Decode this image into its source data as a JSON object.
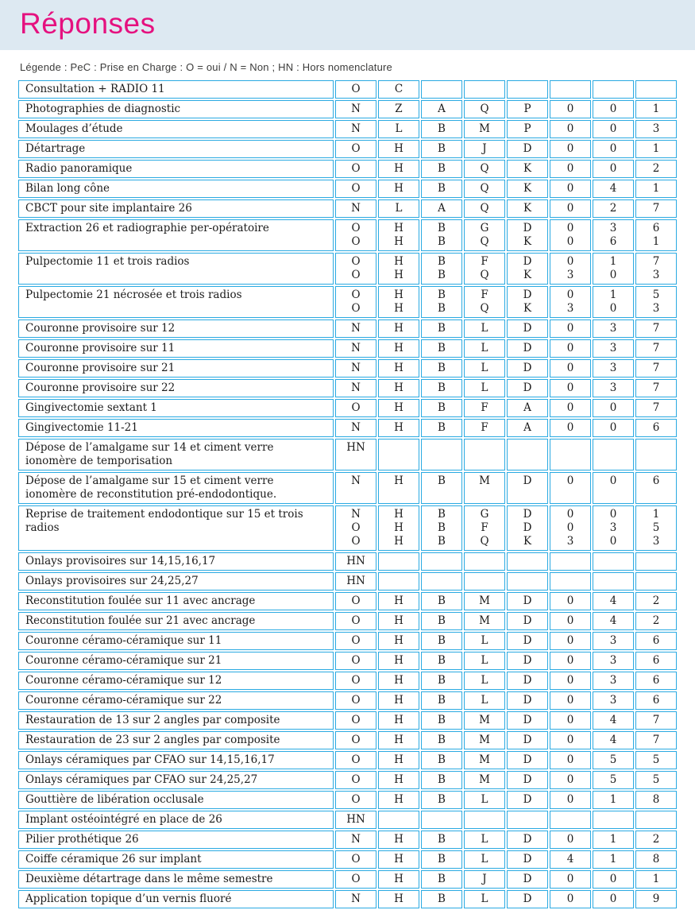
{
  "page": {
    "title": "Réponses",
    "legend": "Légende : PeC : Prise en Charge : O = oui / N = Non ; HN : Hors nomenclature"
  },
  "colors": {
    "title_pink": "#e5117f",
    "table_border_cyan": "#2aaae2",
    "header_band_blue": "#dde9f2",
    "text_ink": "#1c1c1c"
  },
  "table": {
    "value_column_count": 8,
    "rows": [
      {
        "label": "Consultation + RADIO 11",
        "values": [
          [
            "O"
          ],
          [
            "C"
          ],
          [],
          [],
          [],
          [],
          [],
          []
        ]
      },
      {
        "label": "Photographies de diagnostic",
        "values": [
          [
            "N"
          ],
          [
            "Z"
          ],
          [
            "A"
          ],
          [
            "Q"
          ],
          [
            "P"
          ],
          [
            "0"
          ],
          [
            "0"
          ],
          [
            "1"
          ]
        ]
      },
      {
        "label": "Moulages d’étude",
        "values": [
          [
            "N"
          ],
          [
            "L"
          ],
          [
            "B"
          ],
          [
            "M"
          ],
          [
            "P"
          ],
          [
            "0"
          ],
          [
            "0"
          ],
          [
            "3"
          ]
        ]
      },
      {
        "label": "Détartrage",
        "values": [
          [
            "O"
          ],
          [
            "H"
          ],
          [
            "B"
          ],
          [
            "J"
          ],
          [
            "D"
          ],
          [
            "0"
          ],
          [
            "0"
          ],
          [
            "1"
          ]
        ]
      },
      {
        "label": "Radio panoramique",
        "values": [
          [
            "O"
          ],
          [
            "H"
          ],
          [
            "B"
          ],
          [
            "Q"
          ],
          [
            "K"
          ],
          [
            "0"
          ],
          [
            "0"
          ],
          [
            "2"
          ]
        ]
      },
      {
        "label": "Bilan long cône",
        "values": [
          [
            "O"
          ],
          [
            "H"
          ],
          [
            "B"
          ],
          [
            "Q"
          ],
          [
            "K"
          ],
          [
            "0"
          ],
          [
            "4"
          ],
          [
            "1"
          ]
        ]
      },
      {
        "label": "CBCT pour site implantaire 26",
        "values": [
          [
            "N"
          ],
          [
            "L"
          ],
          [
            "A"
          ],
          [
            "Q"
          ],
          [
            "K"
          ],
          [
            "0"
          ],
          [
            "2"
          ],
          [
            "7"
          ]
        ]
      },
      {
        "label": "Extraction 26 et radiographie per-opératoire",
        "values": [
          [
            "O",
            "O"
          ],
          [
            "H",
            "H"
          ],
          [
            "B",
            "B"
          ],
          [
            "G",
            "Q"
          ],
          [
            "D",
            "K"
          ],
          [
            "0",
            "0"
          ],
          [
            "3",
            "6"
          ],
          [
            "6",
            "1"
          ]
        ]
      },
      {
        "label": "Pulpectomie 11 et trois radios",
        "values": [
          [
            "O",
            "O"
          ],
          [
            "H",
            "H"
          ],
          [
            "B",
            "B"
          ],
          [
            "F",
            "Q"
          ],
          [
            "D",
            "K"
          ],
          [
            "0",
            "3"
          ],
          [
            "1",
            "0"
          ],
          [
            "7",
            "3"
          ]
        ]
      },
      {
        "label": "Pulpectomie 21 nécrosée et trois radios",
        "values": [
          [
            "O",
            "O"
          ],
          [
            "H",
            "H"
          ],
          [
            "B",
            "B"
          ],
          [
            "F",
            "Q"
          ],
          [
            "D",
            "K"
          ],
          [
            "0",
            "3"
          ],
          [
            "1",
            "0"
          ],
          [
            "5",
            "3"
          ]
        ]
      },
      {
        "label": "Couronne provisoire sur 12",
        "values": [
          [
            "N"
          ],
          [
            "H"
          ],
          [
            "B"
          ],
          [
            "L"
          ],
          [
            "D"
          ],
          [
            "0"
          ],
          [
            "3"
          ],
          [
            "7"
          ]
        ]
      },
      {
        "label": "Couronne provisoire sur 11",
        "values": [
          [
            "N"
          ],
          [
            "H"
          ],
          [
            "B"
          ],
          [
            "L"
          ],
          [
            "D"
          ],
          [
            "0"
          ],
          [
            "3"
          ],
          [
            "7"
          ]
        ]
      },
      {
        "label": "Couronne provisoire sur 21",
        "values": [
          [
            "N"
          ],
          [
            "H"
          ],
          [
            "B"
          ],
          [
            "L"
          ],
          [
            "D"
          ],
          [
            "0"
          ],
          [
            "3"
          ],
          [
            "7"
          ]
        ]
      },
      {
        "label": "Couronne provisoire sur 22",
        "values": [
          [
            "N"
          ],
          [
            "H"
          ],
          [
            "B"
          ],
          [
            "L"
          ],
          [
            "D"
          ],
          [
            "0"
          ],
          [
            "3"
          ],
          [
            "7"
          ]
        ]
      },
      {
        "label": "Gingivectomie sextant 1",
        "values": [
          [
            "O"
          ],
          [
            "H"
          ],
          [
            "B"
          ],
          [
            "F"
          ],
          [
            "A"
          ],
          [
            "0"
          ],
          [
            "0"
          ],
          [
            "7"
          ]
        ]
      },
      {
        "label": "Gingivectomie 11-21",
        "values": [
          [
            "N"
          ],
          [
            "H"
          ],
          [
            "B"
          ],
          [
            "F"
          ],
          [
            "A"
          ],
          [
            "0"
          ],
          [
            "0"
          ],
          [
            "6"
          ]
        ]
      },
      {
        "label": "Dépose de l’amalgame sur 14 et ciment verre ionomère de temporisation",
        "values": [
          [
            "HN"
          ],
          [],
          [],
          [],
          [],
          [],
          [],
          []
        ]
      },
      {
        "label": "Dépose de l’amalgame sur 15 et ciment verre ionomère de reconstitution pré-endodontique.",
        "values": [
          [
            "N"
          ],
          [
            "H"
          ],
          [
            "B"
          ],
          [
            "M"
          ],
          [
            "D"
          ],
          [
            "0"
          ],
          [
            "0"
          ],
          [
            "6"
          ]
        ]
      },
      {
        "label": "Reprise de traitement endodontique sur 15 et trois radios",
        "values": [
          [
            "N",
            "O",
            "O"
          ],
          [
            "H",
            "H",
            "H"
          ],
          [
            "B",
            "B",
            "B"
          ],
          [
            "G",
            "F",
            "Q"
          ],
          [
            "D",
            "D",
            "K"
          ],
          [
            "0",
            "0",
            "3"
          ],
          [
            "0",
            "3",
            "0"
          ],
          [
            "1",
            "5",
            "3"
          ]
        ]
      },
      {
        "label": "Onlays provisoires sur 14,15,16,17",
        "values": [
          [
            "HN"
          ],
          [],
          [],
          [],
          [],
          [],
          [],
          []
        ]
      },
      {
        "label": "Onlays provisoires sur 24,25,27",
        "values": [
          [
            "HN"
          ],
          [],
          [],
          [],
          [],
          [],
          [],
          []
        ]
      },
      {
        "label": "Reconstitution foulée sur 11 avec ancrage",
        "values": [
          [
            "O"
          ],
          [
            "H"
          ],
          [
            "B"
          ],
          [
            "M"
          ],
          [
            "D"
          ],
          [
            "0"
          ],
          [
            "4"
          ],
          [
            "2"
          ]
        ]
      },
      {
        "label": "Reconstitution foulée sur 21 avec ancrage",
        "values": [
          [
            "O"
          ],
          [
            "H"
          ],
          [
            "B"
          ],
          [
            "M"
          ],
          [
            "D"
          ],
          [
            "0"
          ],
          [
            "4"
          ],
          [
            "2"
          ]
        ]
      },
      {
        "label": "Couronne céramo-céramique sur 11",
        "values": [
          [
            "O"
          ],
          [
            "H"
          ],
          [
            "B"
          ],
          [
            "L"
          ],
          [
            "D"
          ],
          [
            "0"
          ],
          [
            "3"
          ],
          [
            "6"
          ]
        ]
      },
      {
        "label": "Couronne céramo-céramique sur 21",
        "values": [
          [
            "O"
          ],
          [
            "H"
          ],
          [
            "B"
          ],
          [
            "L"
          ],
          [
            "D"
          ],
          [
            "0"
          ],
          [
            "3"
          ],
          [
            "6"
          ]
        ]
      },
      {
        "label": "Couronne céramo-céramique sur 12",
        "values": [
          [
            "O"
          ],
          [
            "H"
          ],
          [
            "B"
          ],
          [
            "L"
          ],
          [
            "D"
          ],
          [
            "0"
          ],
          [
            "3"
          ],
          [
            "6"
          ]
        ]
      },
      {
        "label": "Couronne céramo-céramique sur 22",
        "values": [
          [
            "O"
          ],
          [
            "H"
          ],
          [
            "B"
          ],
          [
            "L"
          ],
          [
            "D"
          ],
          [
            "0"
          ],
          [
            "3"
          ],
          [
            "6"
          ]
        ]
      },
      {
        "label": "Restauration de 13 sur 2 angles par composite",
        "values": [
          [
            "O"
          ],
          [
            "H"
          ],
          [
            "B"
          ],
          [
            "M"
          ],
          [
            "D"
          ],
          [
            "0"
          ],
          [
            "4"
          ],
          [
            "7"
          ]
        ]
      },
      {
        "label": "Restauration de 23 sur 2 angles par composite",
        "values": [
          [
            "O"
          ],
          [
            "H"
          ],
          [
            "B"
          ],
          [
            "M"
          ],
          [
            "D"
          ],
          [
            "0"
          ],
          [
            "4"
          ],
          [
            "7"
          ]
        ]
      },
      {
        "label": "Onlays céramiques par CFAO sur 14,15,16,17",
        "values": [
          [
            "O"
          ],
          [
            "H"
          ],
          [
            "B"
          ],
          [
            "M"
          ],
          [
            "D"
          ],
          [
            "0"
          ],
          [
            "5"
          ],
          [
            "5"
          ]
        ]
      },
      {
        "label": "Onlays céramiques par CFAO sur 24,25,27",
        "values": [
          [
            "O"
          ],
          [
            "H"
          ],
          [
            "B"
          ],
          [
            "M"
          ],
          [
            "D"
          ],
          [
            "0"
          ],
          [
            "5"
          ],
          [
            "5"
          ]
        ]
      },
      {
        "label": "Gouttière de libération occlusale",
        "values": [
          [
            "O"
          ],
          [
            "H"
          ],
          [
            "B"
          ],
          [
            "L"
          ],
          [
            "D"
          ],
          [
            "0"
          ],
          [
            "1"
          ],
          [
            "8"
          ]
        ]
      },
      {
        "label": "Implant ostéointégré en place de 26",
        "values": [
          [
            "HN"
          ],
          [],
          [],
          [],
          [],
          [],
          [],
          []
        ]
      },
      {
        "label": "Pilier prothétique 26",
        "values": [
          [
            "N"
          ],
          [
            "H"
          ],
          [
            "B"
          ],
          [
            "L"
          ],
          [
            "D"
          ],
          [
            "0"
          ],
          [
            "1"
          ],
          [
            "2"
          ]
        ]
      },
      {
        "label": "Coiffe céramique 26 sur implant",
        "values": [
          [
            "O"
          ],
          [
            "H"
          ],
          [
            "B"
          ],
          [
            "L"
          ],
          [
            "D"
          ],
          [
            "4"
          ],
          [
            "1"
          ],
          [
            "8"
          ]
        ]
      },
      {
        "label": "Deuxième détartrage dans le même semestre",
        "values": [
          [
            "O"
          ],
          [
            "H"
          ],
          [
            "B"
          ],
          [
            "J"
          ],
          [
            "D"
          ],
          [
            "0"
          ],
          [
            "0"
          ],
          [
            "1"
          ]
        ]
      },
      {
        "label": "Application topique d’un vernis fluoré",
        "values": [
          [
            "N"
          ],
          [
            "H"
          ],
          [
            "B"
          ],
          [
            "L"
          ],
          [
            "D"
          ],
          [
            "0"
          ],
          [
            "0"
          ],
          [
            "9"
          ]
        ]
      }
    ]
  }
}
